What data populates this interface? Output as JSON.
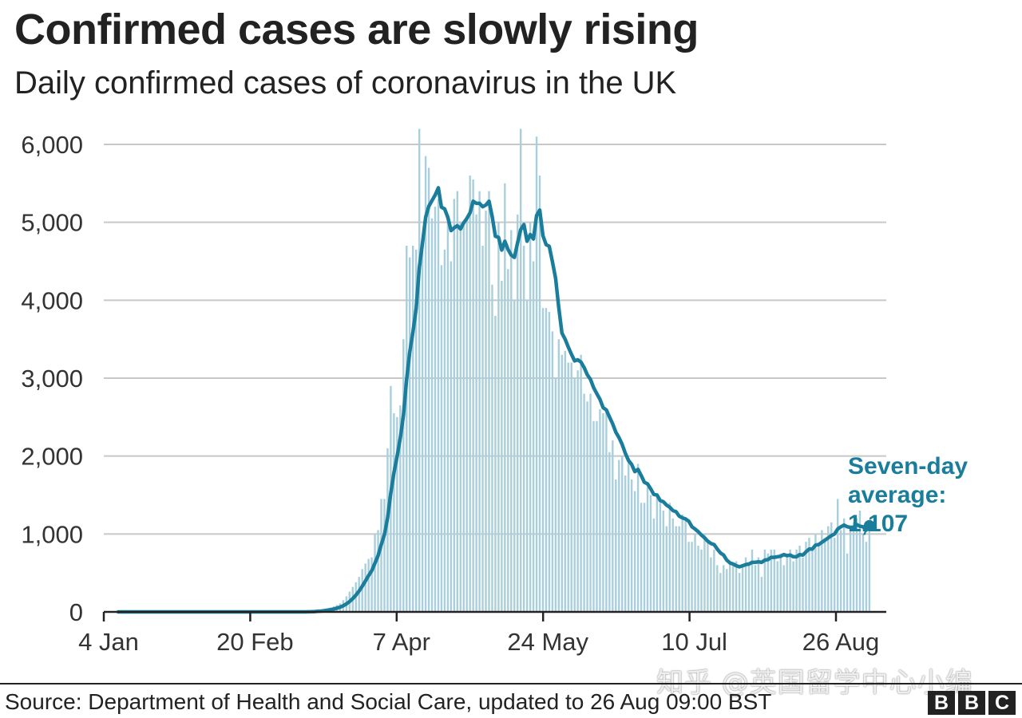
{
  "title": "Confirmed cases are slowly rising",
  "subtitle": "Daily confirmed cases of coronavirus in the UK",
  "source": "Source: Department of Health and Social Care, updated to 26 Aug 09:00 BST",
  "watermark": "知乎 @英国留学中心小编",
  "logo": [
    "B",
    "B",
    "C"
  ],
  "colors": {
    "bars": "#a9cfdc",
    "line": "#1b7d9c",
    "grid": "#c8c8c8",
    "axis": "#222222",
    "text": "#222222"
  },
  "chart_data": {
    "type": "bar",
    "x_axis": {
      "ticks": [
        "4 Jan",
        "20 Feb",
        "7 Apr",
        "24 May",
        "10 Jul",
        "26 Aug"
      ],
      "start": "2020-01-04",
      "end": "2020-08-26"
    },
    "y_axis": {
      "ticks": [
        "6,000",
        "5,000",
        "4,000",
        "3,000",
        "2,000",
        "1,000",
        "0"
      ],
      "ylim": [
        0,
        6000
      ]
    },
    "grid": true,
    "daily_cases": [
      0,
      0,
      0,
      0,
      0,
      0,
      0,
      0,
      0,
      0,
      0,
      0,
      0,
      0,
      0,
      0,
      0,
      0,
      0,
      0,
      0,
      0,
      0,
      0,
      0,
      0,
      0,
      2,
      0,
      0,
      0,
      0,
      0,
      0,
      0,
      0,
      0,
      0,
      0,
      0,
      0,
      0,
      0,
      0,
      0,
      0,
      0,
      0,
      0,
      1,
      0,
      0,
      0,
      0,
      0,
      0,
      0,
      2,
      0,
      0,
      5,
      10,
      15,
      20,
      25,
      35,
      40,
      55,
      70,
      90,
      110,
      150,
      200,
      260,
      320,
      380,
      450,
      550,
      620,
      680,
      700,
      1000,
      1050,
      1450,
      1450,
      2100,
      2900,
      2550,
      2500,
      2650,
      3500,
      4700,
      4550,
      4700,
      4650,
      6200,
      4800,
      5850,
      5700,
      5050,
      5200,
      5300,
      4450,
      4650,
      5100,
      4500,
      5300,
      5400,
      5000,
      5000,
      5050,
      5600,
      5550,
      5100,
      5400,
      4700,
      5150,
      5400,
      4200,
      3800,
      5000,
      4250,
      5500,
      4400,
      4900,
      4000,
      5100,
      6200,
      4700,
      4000,
      5000,
      4500,
      6100,
      5600,
      3900,
      3900,
      3850,
      3600,
      3000,
      3500,
      3300,
      3350,
      3200,
      3200,
      3000,
      3100,
      3300,
      2800,
      2700,
      2800,
      2450,
      2450,
      2600,
      2550,
      2600,
      2050,
      2200,
      1700,
      1950,
      2000,
      1750,
      1950,
      1700,
      1550,
      1900,
      1400,
      1400,
      1600,
      1500,
      1200,
      1500,
      1400,
      1300,
      1100,
      1400,
      1200,
      1100,
      1100,
      1250,
      1200,
      900,
      900,
      1000,
      850,
      800,
      1000,
      900,
      700,
      800,
      600,
      500,
      600,
      550,
      650,
      600,
      650,
      500,
      600,
      700,
      600,
      800,
      600,
      700,
      450,
      800,
      750,
      800,
      800,
      650,
      750,
      600,
      700,
      800,
      650,
      800,
      850,
      700,
      900,
      950,
      800,
      1000,
      850,
      1050,
      900,
      1100,
      1150,
      950,
      1450,
      1050,
      1200,
      750,
      1050,
      1150,
      1200,
      1300,
      1000,
      900,
      1100
    ],
    "seven_day_average_label": [
      "Seven-day",
      "average:",
      "1,107"
    ],
    "seven_day_average_final": 1107
  }
}
